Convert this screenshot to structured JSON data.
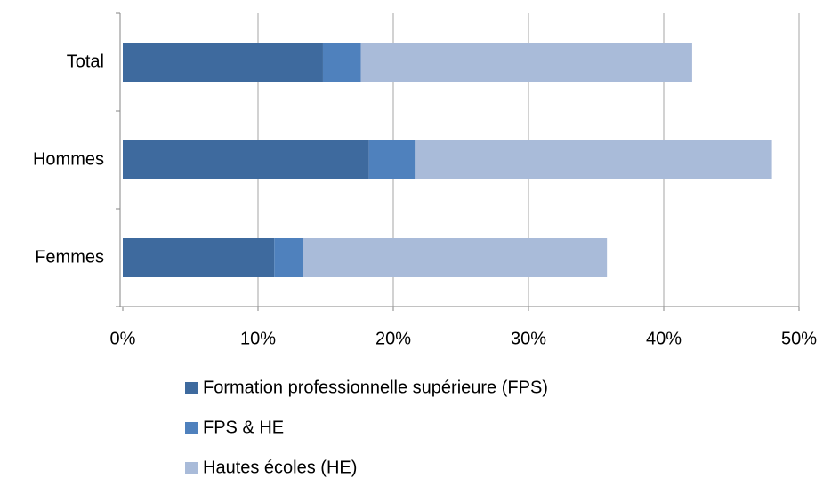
{
  "chart_data": {
    "type": "stacked-barh",
    "categories": [
      "Total",
      "Hommes",
      "Femmes"
    ],
    "series": [
      {
        "name": "Formation professionnelle supérieure (FPS)",
        "color": "#3e6a9e",
        "values": [
          14.8,
          18.2,
          11.2
        ]
      },
      {
        "name": "FPS & HE",
        "color": "#4f81bd",
        "values": [
          2.8,
          3.4,
          2.1
        ]
      },
      {
        "name": "Hautes écoles (HE)",
        "color": "#a9bbd9",
        "values": [
          24.5,
          26.4,
          22.5
        ]
      }
    ],
    "xlim": [
      0,
      50
    ],
    "xticks": [
      {
        "value": 0,
        "label": "0%"
      },
      {
        "value": 10,
        "label": "10%"
      },
      {
        "value": 20,
        "label": "20%"
      },
      {
        "value": 30,
        "label": "30%"
      },
      {
        "value": 40,
        "label": "40%"
      },
      {
        "value": 50,
        "label": "50%"
      }
    ],
    "grid": true,
    "legend": "bottom"
  }
}
